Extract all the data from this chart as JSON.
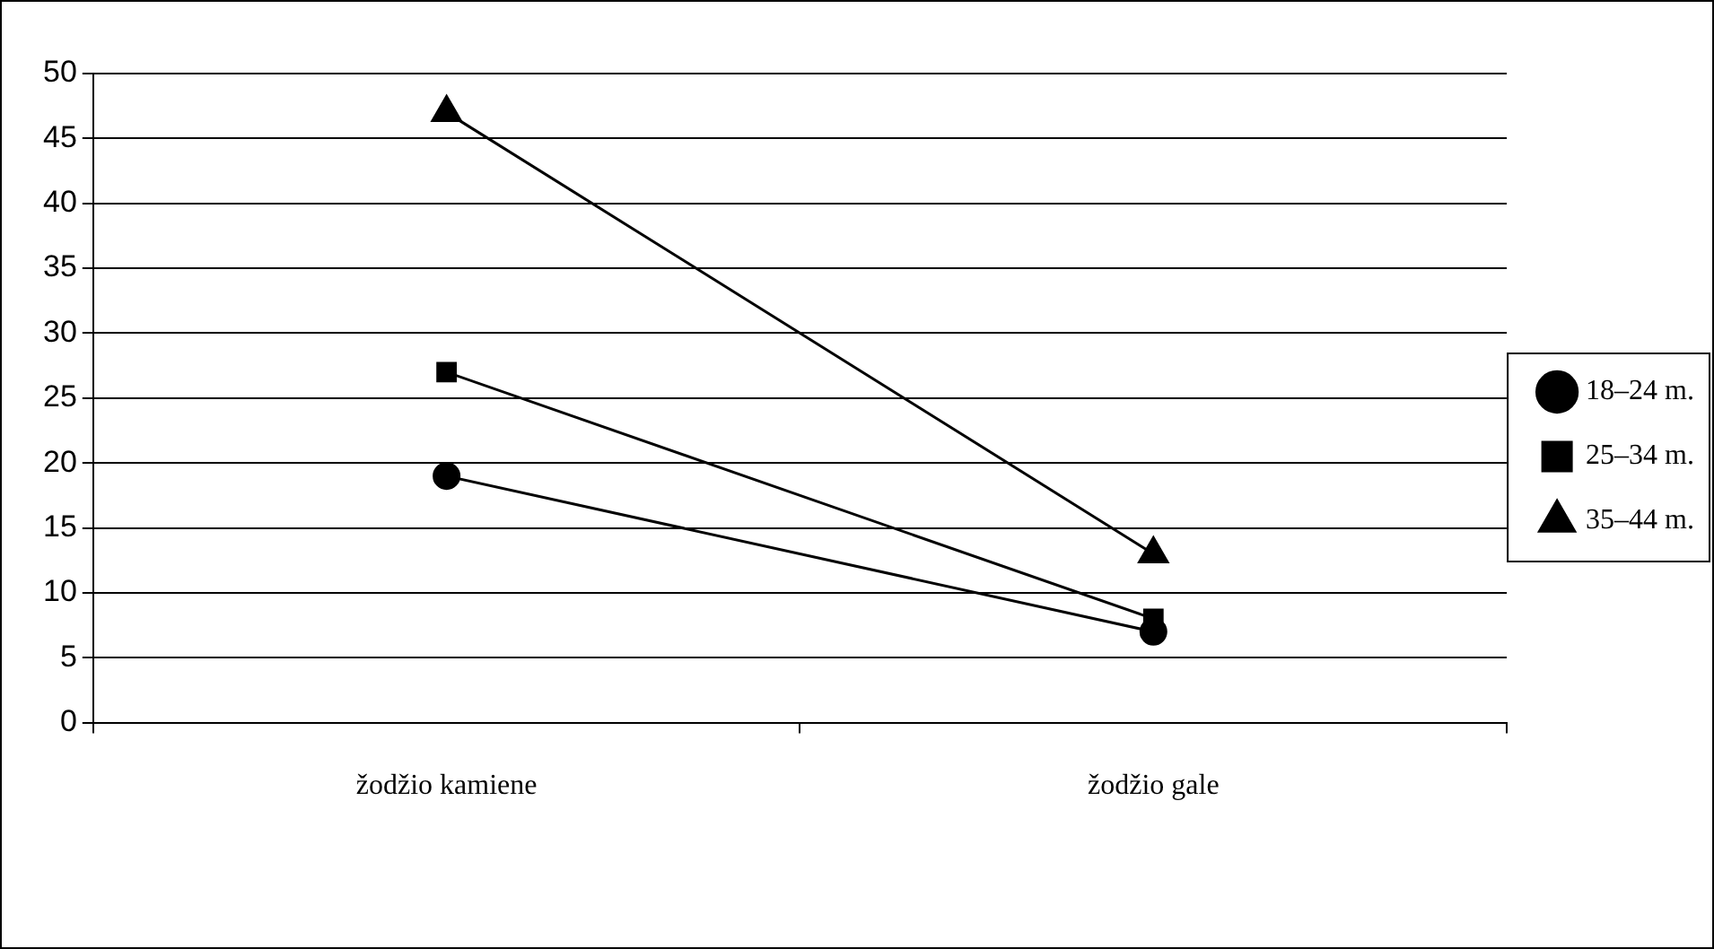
{
  "chart_data": {
    "type": "line",
    "categories": [
      "žodžio kamiene",
      "žodžio gale"
    ],
    "series": [
      {
        "name": "18–24 m.",
        "color": "#000000",
        "values": [
          19,
          7
        ],
        "marker": "circle"
      },
      {
        "name": "25–34 m.",
        "color": "#000000",
        "values": [
          27,
          8
        ],
        "marker": "square"
      },
      {
        "name": "35–44 m.",
        "color": "#000000",
        "values": [
          47,
          13
        ],
        "marker": "triangle"
      }
    ],
    "ylim": [
      0,
      50
    ],
    "yticks": [
      0,
      5,
      10,
      15,
      20,
      25,
      30,
      35,
      40,
      45,
      50
    ],
    "grid": "y",
    "legend": "right",
    "line_style": "solid"
  }
}
